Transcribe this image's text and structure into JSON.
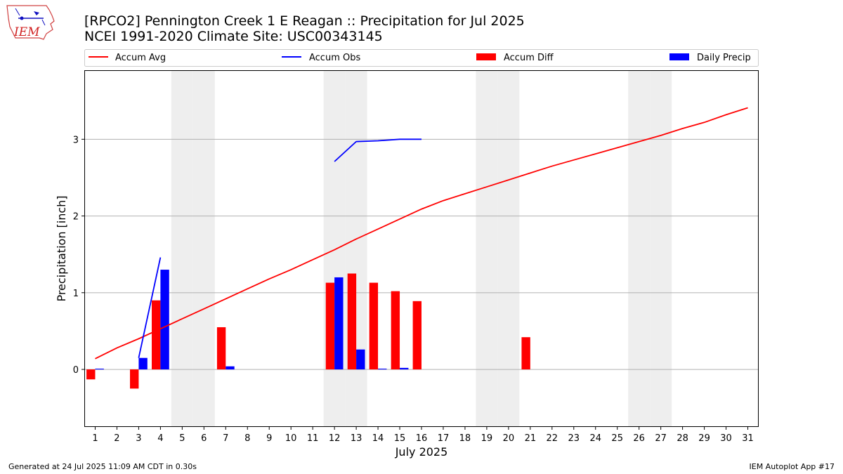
{
  "logo_text": "IEM",
  "chart_data": {
    "type": "bar",
    "title": "[RPCO2] Pennington Creek 1 E Reagan :: Precipitation for Jul 2025",
    "subtitle": "NCEI 1991-2020 Climate Site: USC00343145",
    "xlabel": "July 2025",
    "ylabel": "Precipitation [inch]",
    "ylim": [
      -0.75,
      3.9
    ],
    "xlim": [
      0.5,
      31.5
    ],
    "yticks": [
      0,
      1,
      2,
      3
    ],
    "grid": "horizontal",
    "legend_position": "top",
    "weekend_days": [
      5,
      6,
      12,
      13,
      19,
      20,
      26,
      27
    ],
    "weekend_color": "#eeeeee",
    "days": [
      1,
      2,
      3,
      4,
      5,
      6,
      7,
      8,
      9,
      10,
      11,
      12,
      13,
      14,
      15,
      16,
      17,
      18,
      19,
      20,
      21,
      22,
      23,
      24,
      25,
      26,
      27,
      28,
      29,
      30,
      31
    ],
    "series": [
      {
        "name": "Accum Avg",
        "kind": "line",
        "color": "#ff0000",
        "values": [
          0.14,
          0.28,
          0.4,
          0.53,
          0.66,
          0.79,
          0.92,
          1.05,
          1.18,
          1.3,
          1.43,
          1.56,
          1.7,
          1.83,
          1.96,
          2.09,
          2.2,
          2.29,
          2.38,
          2.47,
          2.56,
          2.65,
          2.73,
          2.81,
          2.89,
          2.97,
          3.05,
          3.14,
          3.22,
          3.32,
          3.41
        ]
      },
      {
        "name": "Accum Obs",
        "kind": "line",
        "color": "#0000ff",
        "values": [
          null,
          null,
          0.15,
          1.46,
          null,
          null,
          null,
          null,
          null,
          null,
          null,
          2.71,
          2.97,
          2.98,
          3.0,
          3.0,
          null,
          null,
          null,
          null,
          null,
          null,
          null,
          null,
          null,
          null,
          null,
          null,
          null,
          null,
          null
        ]
      },
      {
        "name": "Accum Diff",
        "kind": "bar",
        "color": "#ff0000",
        "values": [
          -0.13,
          null,
          -0.25,
          0.9,
          null,
          null,
          0.55,
          null,
          null,
          null,
          null,
          1.13,
          1.25,
          1.13,
          1.02,
          0.89,
          null,
          null,
          null,
          null,
          0.42,
          null,
          null,
          null,
          null,
          null,
          null,
          null,
          null,
          null,
          null
        ]
      },
      {
        "name": "Daily Precip",
        "kind": "bar",
        "color": "#0000ff",
        "values": [
          0.01,
          null,
          0.15,
          1.3,
          null,
          null,
          0.04,
          null,
          null,
          null,
          null,
          1.2,
          0.26,
          0.01,
          0.02,
          null,
          null,
          null,
          null,
          null,
          null,
          null,
          null,
          null,
          null,
          null,
          null,
          null,
          null,
          null,
          null
        ]
      }
    ]
  },
  "footer": {
    "left": "Generated at 24 Jul 2025 11:09 AM CDT in 0.30s",
    "right": "IEM Autoplot App #17"
  }
}
